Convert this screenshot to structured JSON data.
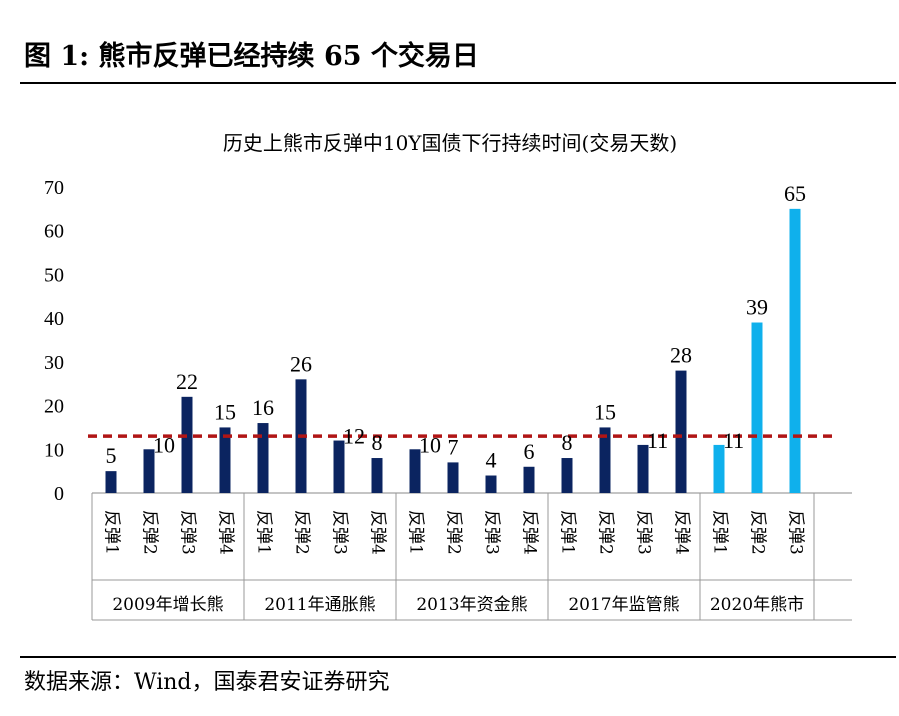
{
  "figure": {
    "title": "图 1:  熊市反弹已经持续 65 个交易日",
    "source": "数据来源：Wind，国泰君安证券研究"
  },
  "colors": {
    "dark_bar": "#0b2460",
    "light_bar": "#0fb0ec",
    "reference_line": "#b01515"
  },
  "chart_data": {
    "type": "bar",
    "title": "历史上熊市反弹中10Y国债下行持续时间(交易天数)",
    "xlabel": "",
    "ylabel": "",
    "ylim": [
      0,
      70
    ],
    "yticks": [
      0,
      10,
      20,
      30,
      40,
      50,
      60,
      70
    ],
    "grid": false,
    "legend": "none",
    "reference_line": {
      "value": 13,
      "style": "dashed",
      "color": "#b01515"
    },
    "groups": [
      {
        "name": "2009年增长熊",
        "categories": [
          "反弹1",
          "反弹2",
          "反弹3",
          "反弹4"
        ],
        "values": [
          5,
          10,
          22,
          15
        ],
        "color": "dark"
      },
      {
        "name": "2011年通胀熊",
        "categories": [
          "反弹1",
          "反弹2",
          "反弹3",
          "反弹4"
        ],
        "values": [
          16,
          26,
          12,
          8
        ],
        "color": "dark"
      },
      {
        "name": "2013年资金熊",
        "categories": [
          "反弹1",
          "反弹2",
          "反弹3",
          "反弹4"
        ],
        "values": [
          10,
          7,
          4,
          6
        ],
        "color": "dark"
      },
      {
        "name": "2017年监管熊",
        "categories": [
          "反弹1",
          "反弹2",
          "反弹3",
          "反弹4"
        ],
        "values": [
          8,
          15,
          11,
          28
        ],
        "color": "dark"
      },
      {
        "name": "2020年熊市",
        "categories": [
          "反弹1",
          "反弹2",
          "反弹3"
        ],
        "values": [
          11,
          39,
          65
        ],
        "color": "light"
      }
    ]
  }
}
